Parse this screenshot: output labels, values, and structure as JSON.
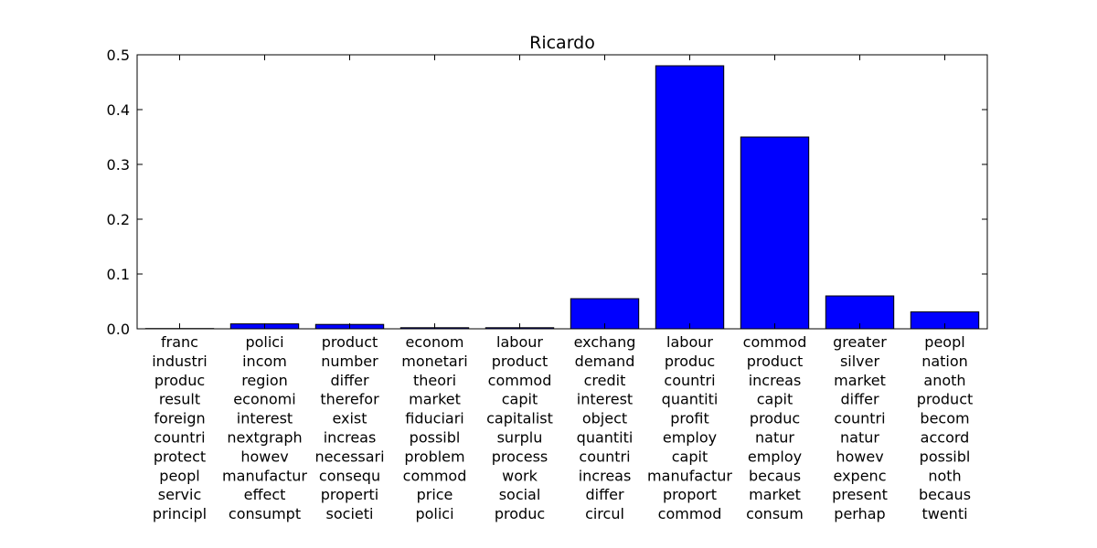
{
  "chart_data": {
    "type": "bar",
    "title": "Ricardo",
    "xlabel": "",
    "ylabel": "",
    "ylim": [
      0,
      0.5
    ],
    "yticks": [
      "0.0",
      "0.1",
      "0.2",
      "0.3",
      "0.4",
      "0.5"
    ],
    "bar_color": "#0000ff",
    "categories": [
      [
        "franc",
        "industri",
        "produc",
        "result",
        "foreign",
        "countri",
        "protect",
        "peopl",
        "servic",
        "principl"
      ],
      [
        "polici",
        "incom",
        "region",
        "economi",
        "interest",
        "nextgraph",
        "howev",
        "manufactur",
        "effect",
        "consumpt"
      ],
      [
        "product",
        "number",
        "differ",
        "therefor",
        "exist",
        "increas",
        "necessari",
        "consequ",
        "properti",
        "societi"
      ],
      [
        "econom",
        "monetari",
        "theori",
        "market",
        "fiduciari",
        "possibl",
        "problem",
        "commod",
        "price",
        "polici"
      ],
      [
        "labour",
        "product",
        "commod",
        "capit",
        "capitalist",
        "surplu",
        "process",
        "work",
        "social",
        "produc"
      ],
      [
        "exchang",
        "demand",
        "credit",
        "interest",
        "object",
        "quantiti",
        "countri",
        "increas",
        "differ",
        "circul"
      ],
      [
        "labour",
        "produc",
        "countri",
        "quantiti",
        "profit",
        "employ",
        "capit",
        "manufactur",
        "proport",
        "commod"
      ],
      [
        "commod",
        "product",
        "increas",
        "capit",
        "produc",
        "natur",
        "employ",
        "becaus",
        "market",
        "consum"
      ],
      [
        "greater",
        "silver",
        "market",
        "differ",
        "countri",
        "natur",
        "howev",
        "expenc",
        "present",
        "perhap"
      ],
      [
        "peopl",
        "nation",
        "anoth",
        "product",
        "becom",
        "accord",
        "possibl",
        "noth",
        "becaus",
        "twenti"
      ]
    ],
    "values": [
      0.0005,
      0.009,
      0.008,
      0.002,
      0.002,
      0.055,
      0.48,
      0.35,
      0.06,
      0.031
    ]
  }
}
